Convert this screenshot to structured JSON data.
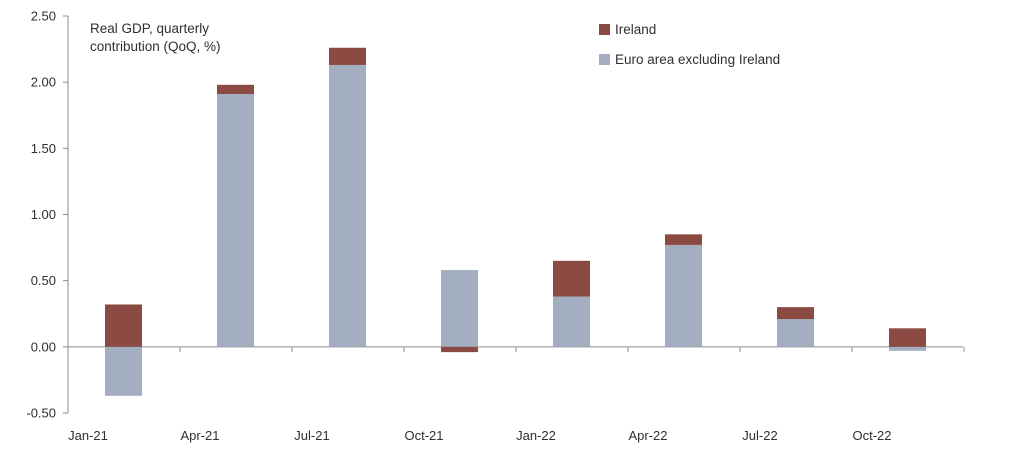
{
  "chart_data": {
    "type": "bar",
    "stacked": true,
    "title": "",
    "annotation_lines": [
      "Real GDP, quarterly",
      "contribution (QoQ, %)"
    ],
    "xlabel": "",
    "ylabel": "",
    "ylim": [
      -0.5,
      2.5
    ],
    "yticks": [
      -0.5,
      0.0,
      0.5,
      1.0,
      1.5,
      2.0,
      2.5
    ],
    "ytick_labels": [
      "-0.50",
      "0.00",
      "0.50",
      "1.00",
      "1.50",
      "2.00",
      "2.50"
    ],
    "categories": [
      "Jan-21",
      "Apr-21",
      "Jul-21",
      "Oct-21",
      "Jan-22",
      "Apr-22",
      "Jul-22",
      "Oct-22"
    ],
    "series": [
      {
        "name": "Euro area excluding Ireland",
        "color": "#a3aec1",
        "values": [
          -0.37,
          1.91,
          2.13,
          0.58,
          0.38,
          0.77,
          0.21,
          -0.03
        ]
      },
      {
        "name": "Ireland",
        "color": "#8b4a42",
        "values": [
          0.32,
          0.07,
          0.13,
          -0.04,
          0.27,
          0.08,
          0.09,
          0.14
        ]
      }
    ],
    "legend_position": "top-right",
    "grid": false
  }
}
